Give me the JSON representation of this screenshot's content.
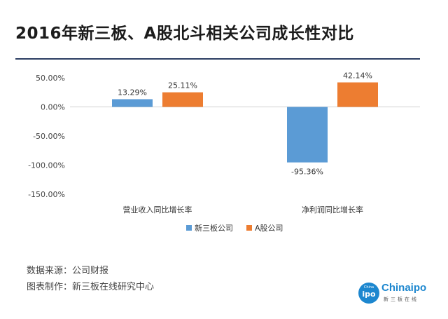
{
  "title": "2016年新三板、A股北斗相关公司成长性对比",
  "chart_data": {
    "type": "bar",
    "categories": [
      "营业收入同比增长率",
      "净利润同比增长率"
    ],
    "series": [
      {
        "name": "新三板公司",
        "values": [
          13.29,
          -95.36
        ],
        "labels": [
          "13.29%",
          "-95.36%"
        ],
        "color": "#5b9bd5"
      },
      {
        "name": "A股公司",
        "values": [
          25.11,
          42.14
        ],
        "labels": [
          "25.11%",
          "42.14%"
        ],
        "color": "#ed7d31"
      }
    ],
    "ylim": [
      -150,
      50
    ],
    "yticks": [
      50,
      0,
      -50,
      -100,
      -150
    ],
    "ytick_labels": [
      "50.00%",
      "0.00%",
      "-50.00%",
      "-100.00%",
      "-150.00%"
    ],
    "grid": false,
    "legend_position": "bottom"
  },
  "footer": {
    "source": "数据来源：公司财报",
    "maker": "图表制作：新三板在线研究中心"
  },
  "logo": {
    "badge_small": "China",
    "badge_main": "ipo",
    "name_a": "China",
    "name_b": "ipo",
    "subtitle": "新三板在线"
  }
}
